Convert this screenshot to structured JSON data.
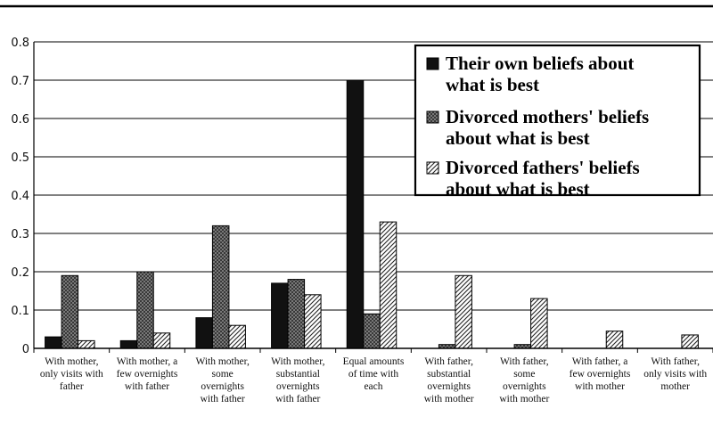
{
  "chart_data": {
    "type": "bar",
    "ylim": [
      0,
      0.8
    ],
    "yticks": [
      "0",
      "0.1",
      "0.2",
      "0.3",
      "0.4",
      "0.5",
      "0.6",
      "0.7",
      "0.8"
    ],
    "grid": true,
    "legend_position": "top-right",
    "categories": [
      [
        "With mother,",
        "only visits with",
        "father"
      ],
      [
        "With mother, a",
        "few overnights",
        "with father"
      ],
      [
        "With mother,",
        "some",
        "overnights",
        "with father"
      ],
      [
        "With mother,",
        "substantial",
        "overnights",
        "with father"
      ],
      [
        "Equal amounts",
        "of time with",
        "each"
      ],
      [
        "With father,",
        "substantial",
        "overnights",
        "with mother"
      ],
      [
        "With father,",
        "some",
        "overnights",
        "with mother"
      ],
      [
        "With father, a",
        "few overnights",
        "with mother"
      ],
      [
        "With father,",
        "only visits with",
        "mother"
      ]
    ],
    "series": [
      {
        "name_lines": [
          "Their own beliefs about",
          "what is best"
        ],
        "style": "solid",
        "values": [
          0.03,
          0.02,
          0.08,
          0.17,
          0.7,
          0,
          0,
          0,
          0
        ]
      },
      {
        "name_lines": [
          "Divorced mothers' beliefs",
          "about what is best"
        ],
        "style": "crosshatch",
        "values": [
          0.19,
          0.2,
          0.32,
          0.18,
          0.09,
          0.01,
          0.01,
          0,
          0
        ]
      },
      {
        "name_lines": [
          "Divorced fathers' beliefs",
          "about what is best"
        ],
        "style": "diagonal",
        "values": [
          0.02,
          0.04,
          0.06,
          0.14,
          0.33,
          0.19,
          0.13,
          0.045,
          0.035
        ]
      }
    ],
    "colors": {
      "solid": "#111111",
      "crosshatch": "#7a7a7a",
      "diagonal": "#ffffff",
      "line": "#000000"
    }
  }
}
